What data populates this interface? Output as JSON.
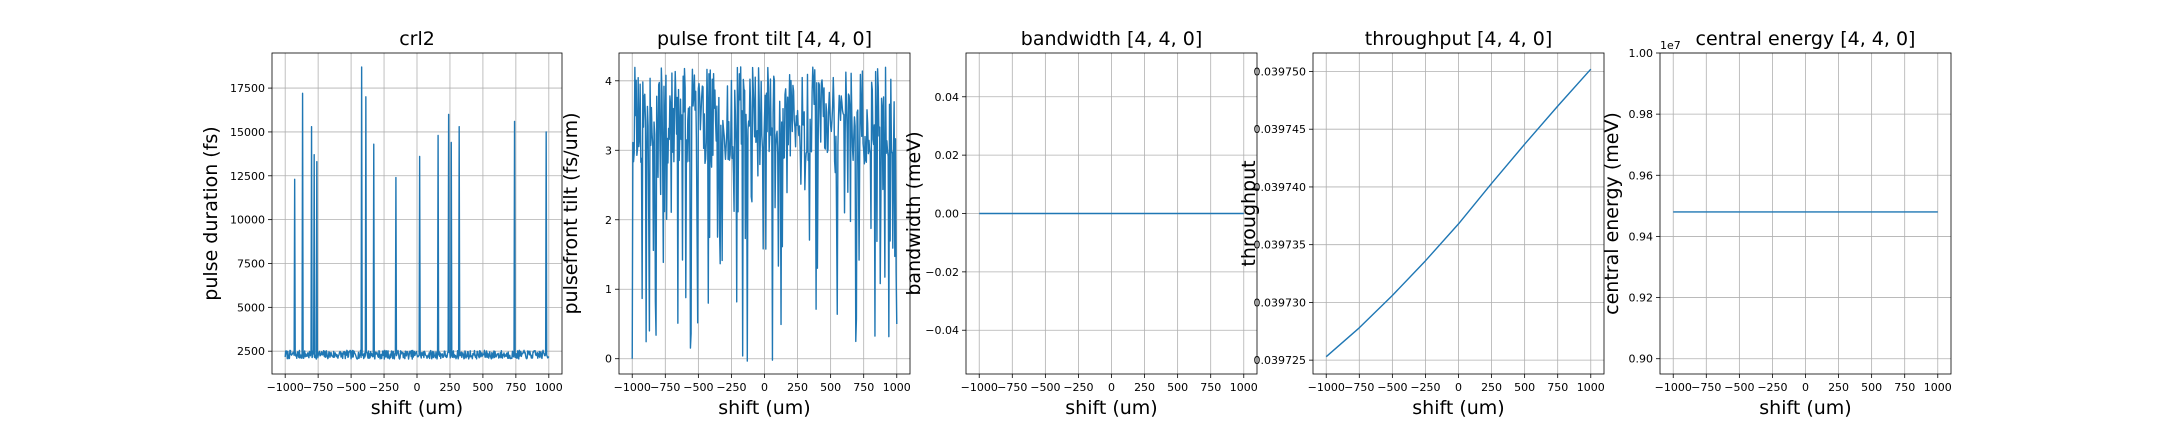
{
  "chart_data": [
    {
      "type": "line",
      "title": "crl2",
      "xlabel": "shift (um)",
      "ylabel": "pulse duration (fs)",
      "xlim": [
        -1100,
        1100
      ],
      "ylim": [
        1200,
        19500
      ],
      "xticks": [
        -1000,
        -750,
        -500,
        -250,
        0,
        250,
        500,
        750,
        1000
      ],
      "xtick_labels": [
        "−1000",
        "−750",
        "−500",
        "−250",
        "0",
        "250",
        "500",
        "750",
        "1000"
      ],
      "yticks": [
        2500,
        5000,
        7500,
        10000,
        12500,
        15000,
        17500
      ],
      "ytick_labels": [
        "2500",
        "5000",
        "7500",
        "10000",
        "12500",
        "15000",
        "17500"
      ],
      "grid": true,
      "series": [
        {
          "x_range": [
            -1000,
            1000
          ],
          "n_points": 501,
          "baseline": {
            "value": 2300,
            "noise": 250,
            "min": 1500,
            "max": 2950
          },
          "spikes": [
            {
              "x": -930,
              "y": 12300
            },
            {
              "x": -870,
              "y": 17200
            },
            {
              "x": -800,
              "y": 15300
            },
            {
              "x": -780,
              "y": 13700
            },
            {
              "x": -760,
              "y": 13300
            },
            {
              "x": -420,
              "y": 18700
            },
            {
              "x": -390,
              "y": 17000
            },
            {
              "x": -330,
              "y": 14300
            },
            {
              "x": -160,
              "y": 12400
            },
            {
              "x": 20,
              "y": 13600
            },
            {
              "x": 160,
              "y": 14800
            },
            {
              "x": 240,
              "y": 16000
            },
            {
              "x": 260,
              "y": 14400
            },
            {
              "x": 320,
              "y": 15300
            },
            {
              "x": 740,
              "y": 15600
            },
            {
              "x": 980,
              "y": 15000
            }
          ]
        }
      ]
    },
    {
      "type": "line",
      "title": "pulse front tilt [4, 4, 0]",
      "xlabel": "shift (um)",
      "ylabel": "pulsefront tilt (fs/um)",
      "xlim": [
        -1100,
        1100
      ],
      "ylim": [
        -0.22,
        4.4
      ],
      "xticks": [
        -1000,
        -750,
        -500,
        -250,
        0,
        250,
        500,
        750,
        1000
      ],
      "xtick_labels": [
        "−1000",
        "−750",
        "−500",
        "−250",
        "0",
        "250",
        "500",
        "750",
        "1000"
      ],
      "yticks": [
        0,
        1,
        2,
        3,
        4
      ],
      "ytick_labels": [
        "0",
        "1",
        "2",
        "3",
        "4"
      ],
      "grid": true,
      "series": [
        {
          "x_range": [
            -1000,
            1000
          ],
          "n_points": 401,
          "range": [
            -0.1,
            4.3
          ],
          "typical_range": [
            2.8,
            4.2
          ],
          "starts_at": 0.0,
          "ends_at": 0.5
        }
      ]
    },
    {
      "type": "line",
      "title": "bandwidth [4, 4, 0]",
      "xlabel": "shift (um)",
      "ylabel": "bandwidth (meV)",
      "xlim": [
        -1100,
        1100
      ],
      "ylim": [
        -0.055,
        0.055
      ],
      "xticks": [
        -1000,
        -750,
        -500,
        -250,
        0,
        250,
        500,
        750,
        1000
      ],
      "xtick_labels": [
        "−1000",
        "−750",
        "−500",
        "−250",
        "0",
        "250",
        "500",
        "750",
        "1000"
      ],
      "yticks": [
        -0.04,
        -0.02,
        0.0,
        0.02,
        0.04
      ],
      "ytick_labels": [
        "−0.04",
        "−0.02",
        "0.00",
        "0.02",
        "0.04"
      ],
      "grid": true,
      "series": [
        {
          "x": [
            -1000,
            1000
          ],
          "y": [
            0.0,
            0.0
          ]
        }
      ]
    },
    {
      "type": "line",
      "title": "throughput [4, 4, 0]",
      "xlabel": "shift (um)",
      "ylabel": "throughput",
      "xlim": [
        -1100,
        1100
      ],
      "ylim": [
        0.0397238,
        0.0397516
      ],
      "xticks": [
        -1000,
        -750,
        -500,
        -250,
        0,
        250,
        500,
        750,
        1000
      ],
      "xtick_labels": [
        "−1000",
        "−750",
        "−500",
        "−250",
        "0",
        "250",
        "500",
        "750",
        "1000"
      ],
      "yticks": [
        0.039725,
        0.03973,
        0.039735,
        0.03974,
        0.039745,
        0.03975
      ],
      "ytick_labels": [
        "0.039725",
        "0.039730",
        "0.039735",
        "0.039740",
        "0.039745",
        "0.039750"
      ],
      "grid": true,
      "series": [
        {
          "x": [
            -1000,
            -750,
            -500,
            -250,
            0,
            250,
            500,
            750,
            1000
          ],
          "y": [
            0.0397253,
            0.0397278,
            0.0397306,
            0.0397336,
            0.0397368,
            0.0397403,
            0.0397437,
            0.039747,
            0.0397502
          ]
        }
      ]
    },
    {
      "type": "line",
      "title": "central energy [4, 4, 0]",
      "xlabel": "shift (um)",
      "ylabel": "central energy (meV)",
      "offset_label": "1e7",
      "xlim": [
        -1100,
        1100
      ],
      "ylim": [
        0.895,
        1.0
      ],
      "xticks": [
        -1000,
        -750,
        -500,
        -250,
        0,
        250,
        500,
        750,
        1000
      ],
      "xtick_labels": [
        "−1000",
        "−750",
        "−500",
        "−250",
        "0",
        "250",
        "500",
        "750",
        "1000"
      ],
      "yticks": [
        0.9,
        0.92,
        0.94,
        0.96,
        0.98,
        1.0
      ],
      "ytick_labels": [
        "0.90",
        "0.92",
        "0.94",
        "0.96",
        "0.98",
        "1.00"
      ],
      "grid": true,
      "series": [
        {
          "x": [
            -1000,
            1000
          ],
          "y": [
            0.948,
            0.948
          ]
        }
      ]
    }
  ]
}
